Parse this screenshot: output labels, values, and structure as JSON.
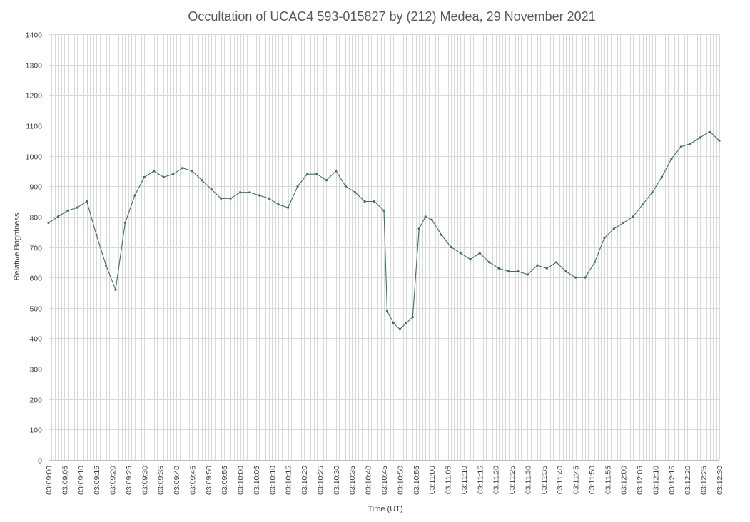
{
  "chart_data": {
    "type": "line",
    "title": "Occultation of UCAC4 593-015827 by (212) Medea, 29 November 2021",
    "xlabel": "Time (UT)",
    "ylabel": "Relative Brightness",
    "ylim": [
      0,
      1400
    ],
    "yticks": [
      0,
      100,
      200,
      300,
      400,
      500,
      600,
      700,
      800,
      900,
      1000,
      1100,
      1200,
      1300,
      1400
    ],
    "x_range": [
      "03:09:00",
      "03:12:30"
    ],
    "x_tick_labels": [
      "03:09:00",
      "03:09:05",
      "03:09:10",
      "03:09:15",
      "03:09:20",
      "03:09:25",
      "03:09:30",
      "03:09:35",
      "03:09:40",
      "03:09:45",
      "03:09:50",
      "03:09:55",
      "03:10:00",
      "03:10:05",
      "03:10:10",
      "03:10:15",
      "03:10:20",
      "03:10:25",
      "03:10:30",
      "03:10:35",
      "03:10:40",
      "03:10:45",
      "03:10:50",
      "03:10:55",
      "03:11:00",
      "03:11:05",
      "03:11:10",
      "03:11:15",
      "03:11:20",
      "03:11:25",
      "03:11:30",
      "03:11:35",
      "03:11:40",
      "03:11:45",
      "03:11:50",
      "03:11:55",
      "03:12:00",
      "03:12:05",
      "03:12:10",
      "03:12:15",
      "03:12:20",
      "03:12:25",
      "03:12:30"
    ],
    "grid": true,
    "legend": "none",
    "color": "#3d7062",
    "series": [
      {
        "x": [
          "03:09:00",
          "03:09:03",
          "03:09:06",
          "03:09:09",
          "03:09:12",
          "03:09:15",
          "03:09:18",
          "03:09:21",
          "03:09:24",
          "03:09:27",
          "03:09:30",
          "03:09:33",
          "03:09:36",
          "03:09:39",
          "03:09:42",
          "03:09:45",
          "03:09:48",
          "03:09:51",
          "03:09:54",
          "03:09:57",
          "03:10:00",
          "03:10:03",
          "03:10:06",
          "03:10:09",
          "03:10:12",
          "03:10:15",
          "03:10:18",
          "03:10:21",
          "03:10:24",
          "03:10:27",
          "03:10:30",
          "03:10:33",
          "03:10:36",
          "03:10:39",
          "03:10:42",
          "03:10:45",
          "03:10:46",
          "03:10:48",
          "03:10:50",
          "03:10:52",
          "03:10:54",
          "03:10:56",
          "03:10:58",
          "03:11:00",
          "03:11:03",
          "03:11:06",
          "03:11:09",
          "03:11:12",
          "03:11:15",
          "03:11:18",
          "03:11:21",
          "03:11:24",
          "03:11:27",
          "03:11:30",
          "03:11:33",
          "03:11:36",
          "03:11:39",
          "03:11:42",
          "03:11:45",
          "03:11:48",
          "03:11:51",
          "03:11:54",
          "03:11:57",
          "03:12:00",
          "03:12:03",
          "03:12:06",
          "03:12:09",
          "03:12:12",
          "03:12:15",
          "03:12:18",
          "03:12:21",
          "03:12:24",
          "03:12:27",
          "03:12:30"
        ],
        "values": [
          780,
          800,
          820,
          830,
          850,
          740,
          640,
          560,
          780,
          870,
          930,
          950,
          930,
          940,
          960,
          950,
          920,
          890,
          860,
          860,
          880,
          880,
          870,
          860,
          840,
          830,
          900,
          940,
          940,
          920,
          950,
          900,
          880,
          850,
          850,
          820,
          490,
          450,
          430,
          450,
          470,
          760,
          800,
          790,
          740,
          700,
          680,
          660,
          680,
          650,
          630,
          620,
          620,
          610,
          640,
          630,
          650,
          620,
          600,
          600,
          650,
          730,
          760,
          780,
          800,
          840,
          880,
          930,
          990,
          1030,
          1040,
          1060,
          1080,
          1050
        ]
      }
    ]
  }
}
